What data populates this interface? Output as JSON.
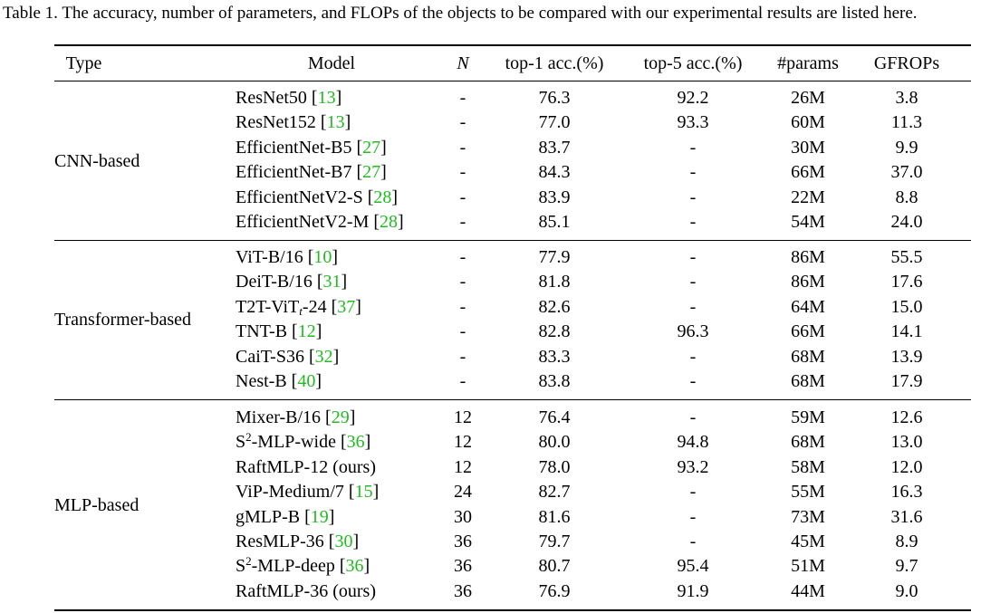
{
  "caption": "Table 1. The accuracy, number of parameters, and FLOPs of the objects to be compared with our experimental results are listed here.",
  "headers": {
    "type": "Type",
    "model": "Model",
    "n": "N",
    "top1": "top-1 acc.(%)",
    "top5": "top-5 acc.(%)",
    "params": "#params",
    "gflops": "GFROPs"
  },
  "groups": [
    {
      "type": "CNN-based",
      "rows": [
        {
          "model": "ResNet50",
          "model_sup": "",
          "model_sub": "",
          "model_suffix": "",
          "ref": "13",
          "n": "-",
          "top1": "76.3",
          "top5": "92.2",
          "params": "26M",
          "gflops": "3.8"
        },
        {
          "model": "ResNet152",
          "model_sup": "",
          "model_sub": "",
          "model_suffix": "",
          "ref": "13",
          "n": "-",
          "top1": "77.0",
          "top5": "93.3",
          "params": "60M",
          "gflops": "11.3"
        },
        {
          "model": "EfficientNet-B5",
          "model_sup": "",
          "model_sub": "",
          "model_suffix": "",
          "ref": "27",
          "n": "-",
          "top1": "83.7",
          "top5": "-",
          "params": "30M",
          "gflops": "9.9"
        },
        {
          "model": "EfficientNet-B7",
          "model_sup": "",
          "model_sub": "",
          "model_suffix": "",
          "ref": "27",
          "n": "-",
          "top1": "84.3",
          "top5": "-",
          "params": "66M",
          "gflops": "37.0"
        },
        {
          "model": "EfficientNetV2-S",
          "model_sup": "",
          "model_sub": "",
          "model_suffix": "",
          "ref": "28",
          "n": "-",
          "top1": "83.9",
          "top5": "-",
          "params": "22M",
          "gflops": "8.8"
        },
        {
          "model": "EfficientNetV2-M",
          "model_sup": "",
          "model_sub": "",
          "model_suffix": "",
          "ref": "28",
          "n": "-",
          "top1": "85.1",
          "top5": "-",
          "params": "54M",
          "gflops": "24.0"
        }
      ]
    },
    {
      "type": "Transformer-based",
      "rows": [
        {
          "model": "ViT-B/16",
          "model_sup": "",
          "model_sub": "",
          "model_suffix": "",
          "ref": "10",
          "n": "-",
          "top1": "77.9",
          "top5": "-",
          "params": "86M",
          "gflops": "55.5"
        },
        {
          "model": "DeiT-B/16",
          "model_sup": "",
          "model_sub": "",
          "model_suffix": "",
          "ref": "31",
          "n": "-",
          "top1": "81.8",
          "top5": "-",
          "params": "86M",
          "gflops": "17.6"
        },
        {
          "model": "T2T-ViT",
          "model_sup": "",
          "model_sub": "t",
          "model_suffix": "-24",
          "ref": "37",
          "n": "-",
          "top1": "82.6",
          "top5": "-",
          "params": "64M",
          "gflops": "15.0"
        },
        {
          "model": "TNT-B",
          "model_sup": "",
          "model_sub": "",
          "model_suffix": "",
          "ref": "12",
          "n": "-",
          "top1": "82.8",
          "top5": "96.3",
          "params": "66M",
          "gflops": "14.1"
        },
        {
          "model": "CaiT-S36",
          "model_sup": "",
          "model_sub": "",
          "model_suffix": "",
          "ref": "32",
          "n": "-",
          "top1": "83.3",
          "top5": "-",
          "params": "68M",
          "gflops": "13.9"
        },
        {
          "model": "Nest-B",
          "model_sup": "",
          "model_sub": "",
          "model_suffix": "",
          "ref": "40",
          "n": "-",
          "top1": "83.8",
          "top5": "-",
          "params": "68M",
          "gflops": "17.9"
        }
      ]
    },
    {
      "type": "MLP-based",
      "rows": [
        {
          "model": "Mixer-B/16",
          "model_sup": "",
          "model_sub": "",
          "model_suffix": "",
          "ref": "29",
          "n": "12",
          "top1": "76.4",
          "top5": "-",
          "params": "59M",
          "gflops": "12.6"
        },
        {
          "model": "S",
          "model_sup": "2",
          "model_sub": "",
          "model_suffix": "-MLP-wide",
          "ref": "36",
          "n": "12",
          "top1": "80.0",
          "top5": "94.8",
          "params": "68M",
          "gflops": "13.0"
        },
        {
          "model": "RaftMLP-12 (ours)",
          "model_sup": "",
          "model_sub": "",
          "model_suffix": "",
          "ref": "",
          "n": "12",
          "top1": "78.0",
          "top5": "93.2",
          "params": "58M",
          "gflops": "12.0"
        },
        {
          "model": "ViP-Medium/7",
          "model_sup": "",
          "model_sub": "",
          "model_suffix": "",
          "ref": "15",
          "n": "24",
          "top1": "82.7",
          "top5": "-",
          "params": "55M",
          "gflops": "16.3"
        },
        {
          "model": "gMLP-B",
          "model_sup": "",
          "model_sub": "",
          "model_suffix": "",
          "ref": "19",
          "n": "30",
          "top1": "81.6",
          "top5": "-",
          "params": "73M",
          "gflops": "31.6"
        },
        {
          "model": "ResMLP-36",
          "model_sup": "",
          "model_sub": "",
          "model_suffix": "",
          "ref": "30",
          "n": "36",
          "top1": "79.7",
          "top5": "-",
          "params": "45M",
          "gflops": "8.9"
        },
        {
          "model": "S",
          "model_sup": "2",
          "model_sub": "",
          "model_suffix": "-MLP-deep",
          "ref": "36",
          "n": "36",
          "top1": "80.7",
          "top5": "95.4",
          "params": "51M",
          "gflops": "9.7"
        },
        {
          "model": "RaftMLP-36 (ours)",
          "model_sup": "",
          "model_sub": "",
          "model_suffix": "",
          "ref": "",
          "n": "36",
          "top1": "76.9",
          "top5": "91.9",
          "params": "44M",
          "gflops": "9.0"
        }
      ]
    }
  ],
  "colors": {
    "text": "#000000",
    "reference_link": "#22bb22",
    "background": "#ffffff"
  }
}
